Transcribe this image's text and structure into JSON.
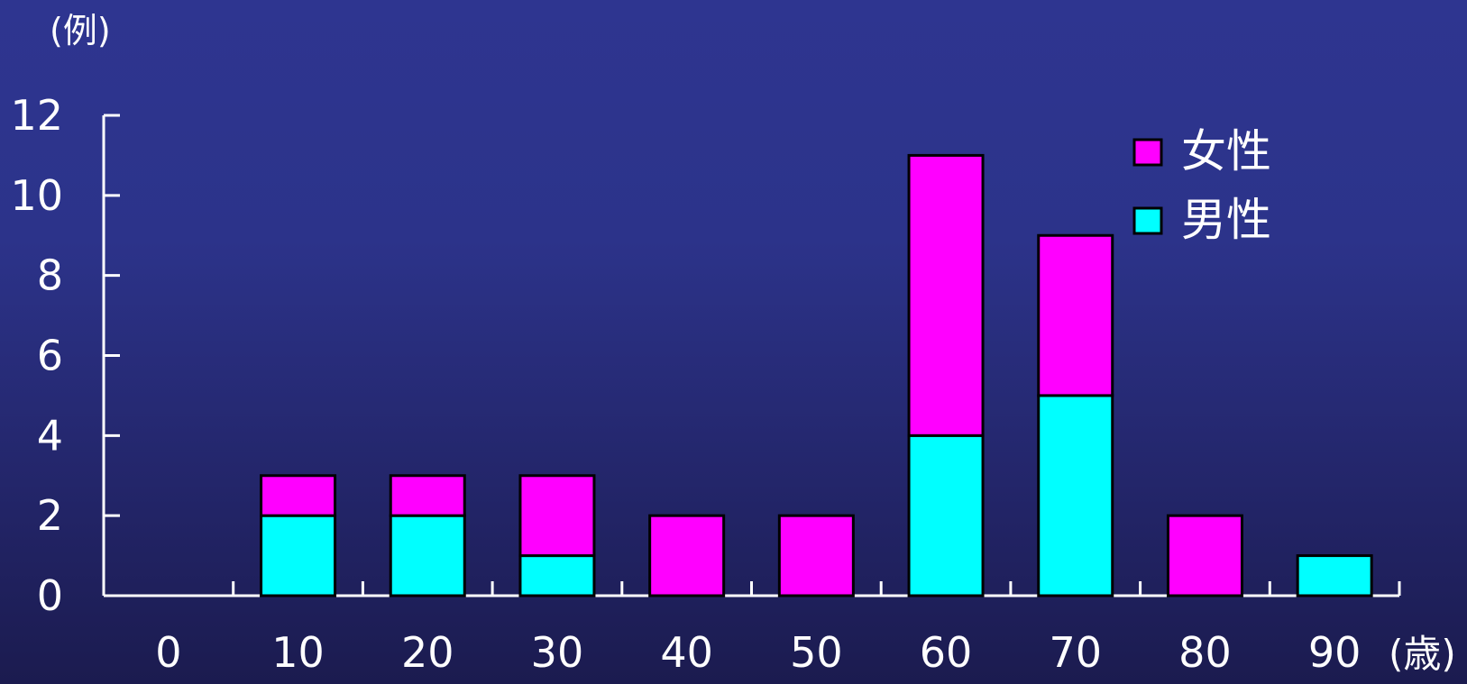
{
  "chart_data": {
    "type": "bar",
    "stacked": true,
    "categories": [
      "0",
      "10",
      "20",
      "30",
      "40",
      "50",
      "60",
      "70",
      "80",
      "90"
    ],
    "series": [
      {
        "name": "男性",
        "color": "#00ffff",
        "values": [
          0,
          2,
          2,
          1,
          0,
          0,
          4,
          5,
          0,
          1
        ]
      },
      {
        "name": "女性",
        "color": "#ff00ff",
        "values": [
          0,
          1,
          1,
          2,
          2,
          2,
          7,
          4,
          2,
          0
        ]
      }
    ],
    "ylabel": "(例)",
    "xlabel": "(歳)",
    "ylim": [
      0,
      12
    ],
    "yticks": [
      "0",
      "2",
      "4",
      "6",
      "8",
      "10",
      "12"
    ],
    "legend": {
      "position": "top-right",
      "order": [
        "女性",
        "男性"
      ]
    },
    "grid": false
  }
}
